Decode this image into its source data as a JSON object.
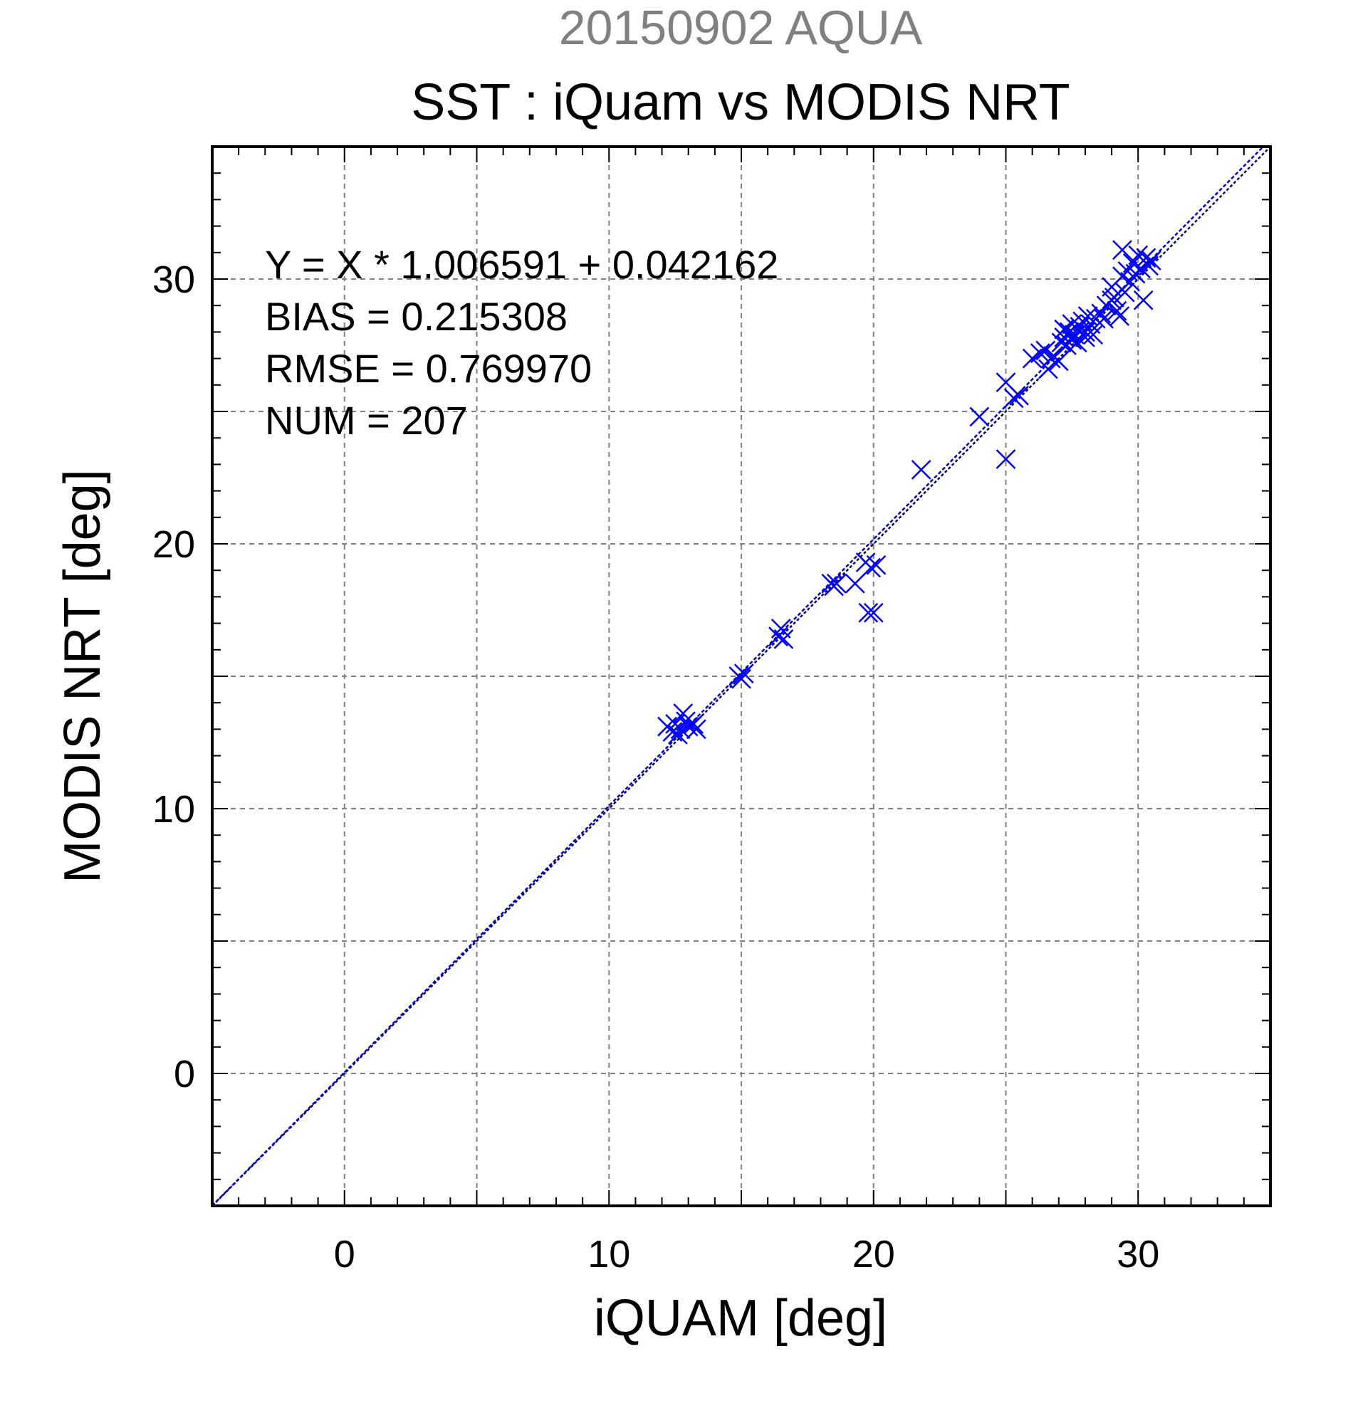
{
  "chart_data": {
    "type": "scatter",
    "supertitle": "20150902 AQUA",
    "title": "SST : iQuam vs MODIS NRT",
    "xlabel": "iQUAM [deg]",
    "ylabel": "MODIS NRT [deg]",
    "xlim": [
      -5,
      35
    ],
    "ylim": [
      -5,
      35
    ],
    "x_ticks": [
      0,
      10,
      20,
      30
    ],
    "y_ticks": [
      0,
      10,
      20,
      30
    ],
    "x_tick_labels": [
      "0",
      "10",
      "20",
      "30"
    ],
    "y_tick_labels": [
      "0",
      "10",
      "20",
      "30"
    ],
    "grid_step": 5,
    "minor_tick_step": 1,
    "grid": true,
    "annotations": [
      "Y = X * 1.006591 + 0.042162",
      "BIAS = 0.215308",
      "RMSE = 0.769970",
      "NUM = 207"
    ],
    "fit": {
      "slope": 1.006591,
      "intercept": 0.042162
    },
    "identity_line": true,
    "marker": "x",
    "colors": {
      "points": "#0000ff",
      "fit_line": "#0000cc",
      "identity_line": "#000066",
      "supertitle": "#808080"
    },
    "series": [
      {
        "points": [
          [
            12.2,
            13.1
          ],
          [
            12.4,
            12.9
          ],
          [
            12.5,
            13.2
          ],
          [
            12.6,
            12.8
          ],
          [
            12.7,
            13.0
          ],
          [
            12.8,
            13.6
          ],
          [
            12.9,
            13.3
          ],
          [
            13.0,
            13.1
          ],
          [
            13.2,
            13.2
          ],
          [
            13.3,
            13.0
          ],
          [
            14.9,
            15.0
          ],
          [
            15.0,
            14.9
          ],
          [
            15.1,
            15.1
          ],
          [
            16.4,
            16.5
          ],
          [
            16.5,
            16.8
          ],
          [
            16.6,
            16.4
          ],
          [
            18.4,
            18.5
          ],
          [
            18.5,
            18.4
          ],
          [
            18.6,
            18.5
          ],
          [
            19.3,
            18.5
          ],
          [
            19.7,
            19.3
          ],
          [
            19.9,
            19.1
          ],
          [
            20.1,
            19.2
          ],
          [
            19.8,
            17.4
          ],
          [
            20.0,
            17.4
          ],
          [
            21.8,
            22.8
          ],
          [
            24.0,
            24.8
          ],
          [
            25.0,
            23.2
          ],
          [
            25.0,
            26.1
          ],
          [
            25.3,
            25.5
          ],
          [
            25.5,
            25.6
          ],
          [
            26.0,
            27.0
          ],
          [
            26.3,
            27.2
          ],
          [
            26.5,
            27.3
          ],
          [
            26.6,
            26.6
          ],
          [
            26.7,
            27.0
          ],
          [
            26.8,
            27.1
          ],
          [
            27.0,
            26.9
          ],
          [
            27.1,
            27.6
          ],
          [
            27.2,
            27.8
          ],
          [
            27.3,
            27.5
          ],
          [
            27.4,
            28.0
          ],
          [
            27.5,
            27.7
          ],
          [
            27.5,
            28.3
          ],
          [
            27.6,
            27.9
          ],
          [
            27.7,
            27.6
          ],
          [
            27.8,
            28.2
          ],
          [
            27.9,
            28.4
          ],
          [
            28.0,
            28.0
          ],
          [
            28.0,
            27.8
          ],
          [
            28.1,
            28.6
          ],
          [
            28.2,
            28.3
          ],
          [
            28.3,
            27.9
          ],
          [
            28.4,
            28.5
          ],
          [
            28.6,
            28.7
          ],
          [
            28.8,
            29.0
          ],
          [
            29.0,
            29.7
          ],
          [
            29.1,
            29.3
          ],
          [
            29.2,
            28.8
          ],
          [
            29.3,
            28.6
          ],
          [
            29.4,
            30.1
          ],
          [
            29.4,
            31.1
          ],
          [
            29.5,
            29.5
          ],
          [
            29.6,
            30.3
          ],
          [
            29.7,
            29.9
          ],
          [
            29.8,
            30.6
          ],
          [
            29.9,
            30.2
          ],
          [
            30.0,
            30.9
          ],
          [
            30.1,
            30.4
          ],
          [
            30.2,
            29.2
          ],
          [
            30.3,
            30.8
          ],
          [
            30.4,
            30.5
          ],
          [
            30.5,
            30.7
          ],
          [
            29.0,
            29.2
          ],
          [
            28.7,
            28.5
          ],
          [
            27.2,
            28.1
          ]
        ]
      }
    ]
  }
}
